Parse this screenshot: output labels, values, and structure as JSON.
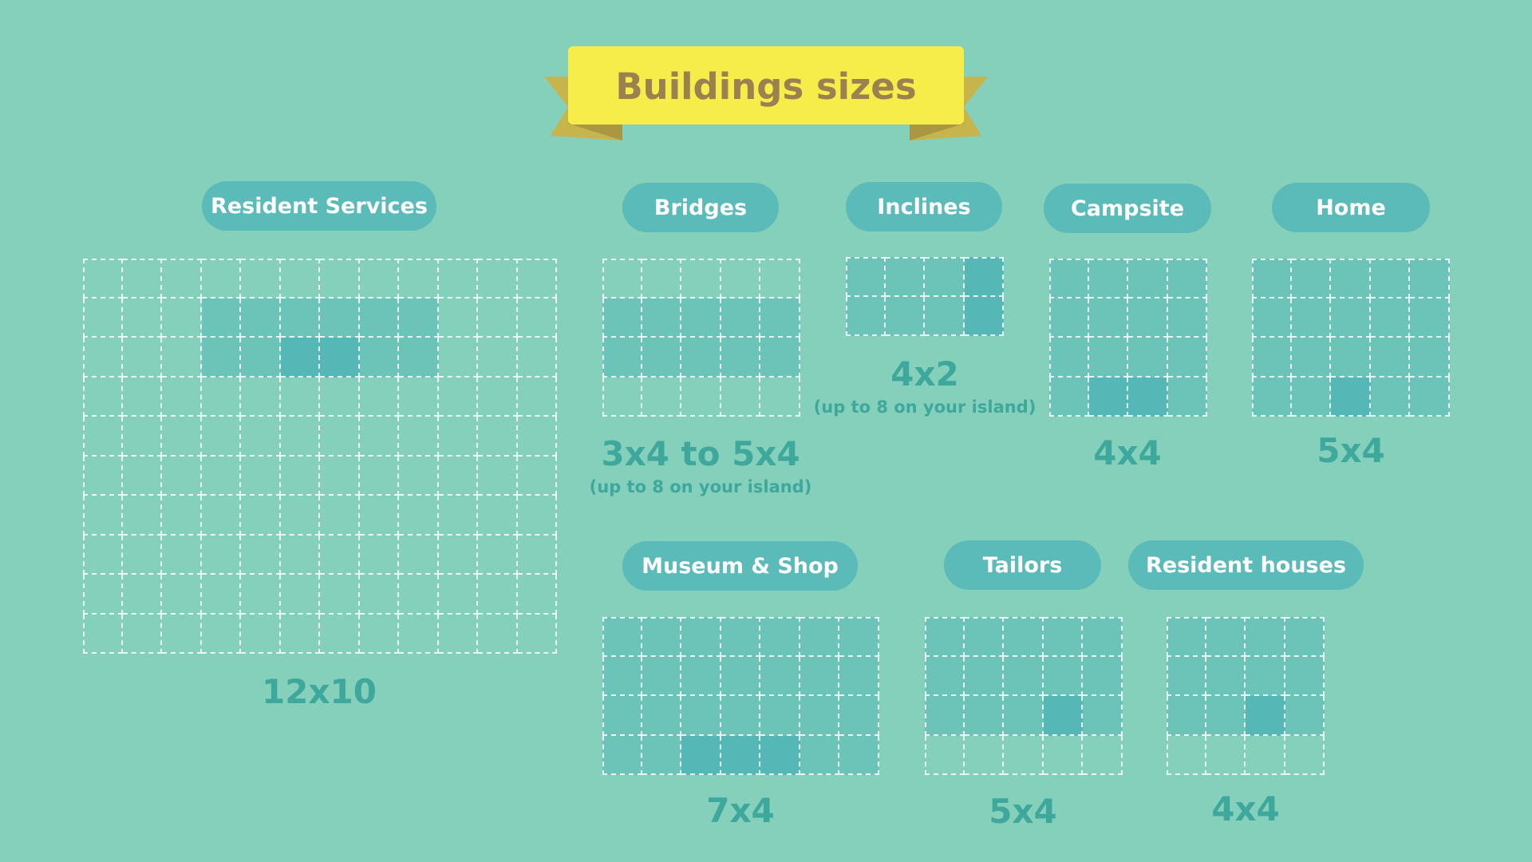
{
  "header": {
    "title": "Buildings sizes"
  },
  "colors": {
    "background": "#84d0ba",
    "banner": "#f6ed4a",
    "banner_ribbon": "#c7b44a",
    "pill": "#5bbbb8",
    "footprint": "#6cc4b9",
    "entrance": "#55b7b6",
    "size_text": "#3ea89c"
  },
  "buildings": [
    {
      "name": "Resident Services",
      "size": "12x10",
      "note": "",
      "grid": {
        "cols": 12,
        "rows": 10
      },
      "footprint": [
        [
          3,
          1
        ],
        [
          4,
          1
        ],
        [
          5,
          1
        ],
        [
          6,
          1
        ],
        [
          7,
          1
        ],
        [
          8,
          1
        ],
        [
          3,
          2
        ],
        [
          4,
          2
        ],
        [
          5,
          2
        ],
        [
          6,
          2
        ],
        [
          7,
          2
        ],
        [
          8,
          2
        ]
      ],
      "entrance": [
        [
          5,
          2
        ],
        [
          6,
          2
        ]
      ]
    },
    {
      "name": "Bridges",
      "size": "3x4 to 5x4",
      "note": "(up to 8 on your island)",
      "grid": {
        "cols": 5,
        "rows": 4
      },
      "footprint": [
        [
          0,
          1
        ],
        [
          1,
          1
        ],
        [
          2,
          1
        ],
        [
          3,
          1
        ],
        [
          4,
          1
        ],
        [
          0,
          2
        ],
        [
          1,
          2
        ],
        [
          2,
          2
        ],
        [
          3,
          2
        ],
        [
          4,
          2
        ]
      ],
      "entrance": []
    },
    {
      "name": "Inclines",
      "size": "4x2",
      "note": "(up to 8 on your island)",
      "grid": {
        "cols": 4,
        "rows": 2
      },
      "footprint": [
        [
          0,
          0
        ],
        [
          1,
          0
        ],
        [
          2,
          0
        ],
        [
          3,
          0
        ],
        [
          0,
          1
        ],
        [
          1,
          1
        ],
        [
          2,
          1
        ],
        [
          3,
          1
        ]
      ],
      "entrance": [
        [
          3,
          0
        ],
        [
          3,
          1
        ]
      ]
    },
    {
      "name": "Campsite",
      "size": "4x4",
      "note": "",
      "grid": {
        "cols": 4,
        "rows": 4
      },
      "footprint": "all",
      "entrance": [
        [
          1,
          3
        ],
        [
          2,
          3
        ]
      ]
    },
    {
      "name": "Home",
      "size": "5x4",
      "note": "",
      "grid": {
        "cols": 5,
        "rows": 4
      },
      "footprint": "all",
      "entrance": [
        [
          2,
          3
        ]
      ]
    },
    {
      "name": "Museum & Shop",
      "size": "7x4",
      "note": "",
      "grid": {
        "cols": 7,
        "rows": 4
      },
      "footprint": "all",
      "entrance": [
        [
          2,
          3
        ],
        [
          3,
          3
        ],
        [
          4,
          3
        ]
      ]
    },
    {
      "name": "Tailors",
      "size": "5x4",
      "note": "",
      "grid": {
        "cols": 5,
        "rows": 4
      },
      "footprint": [
        [
          0,
          0
        ],
        [
          1,
          0
        ],
        [
          2,
          0
        ],
        [
          3,
          0
        ],
        [
          4,
          0
        ],
        [
          0,
          1
        ],
        [
          1,
          1
        ],
        [
          2,
          1
        ],
        [
          3,
          1
        ],
        [
          4,
          1
        ],
        [
          0,
          2
        ],
        [
          1,
          2
        ],
        [
          2,
          2
        ],
        [
          3,
          2
        ],
        [
          4,
          2
        ]
      ],
      "entrance": [
        [
          3,
          2
        ]
      ]
    },
    {
      "name": "Resident houses",
      "size": "4x4",
      "note": "",
      "grid": {
        "cols": 4,
        "rows": 4
      },
      "footprint": [
        [
          0,
          0
        ],
        [
          1,
          0
        ],
        [
          2,
          0
        ],
        [
          3,
          0
        ],
        [
          0,
          1
        ],
        [
          1,
          1
        ],
        [
          2,
          1
        ],
        [
          3,
          1
        ],
        [
          0,
          2
        ],
        [
          1,
          2
        ],
        [
          2,
          2
        ],
        [
          3,
          2
        ]
      ],
      "entrance": [
        [
          2,
          2
        ]
      ]
    }
  ]
}
